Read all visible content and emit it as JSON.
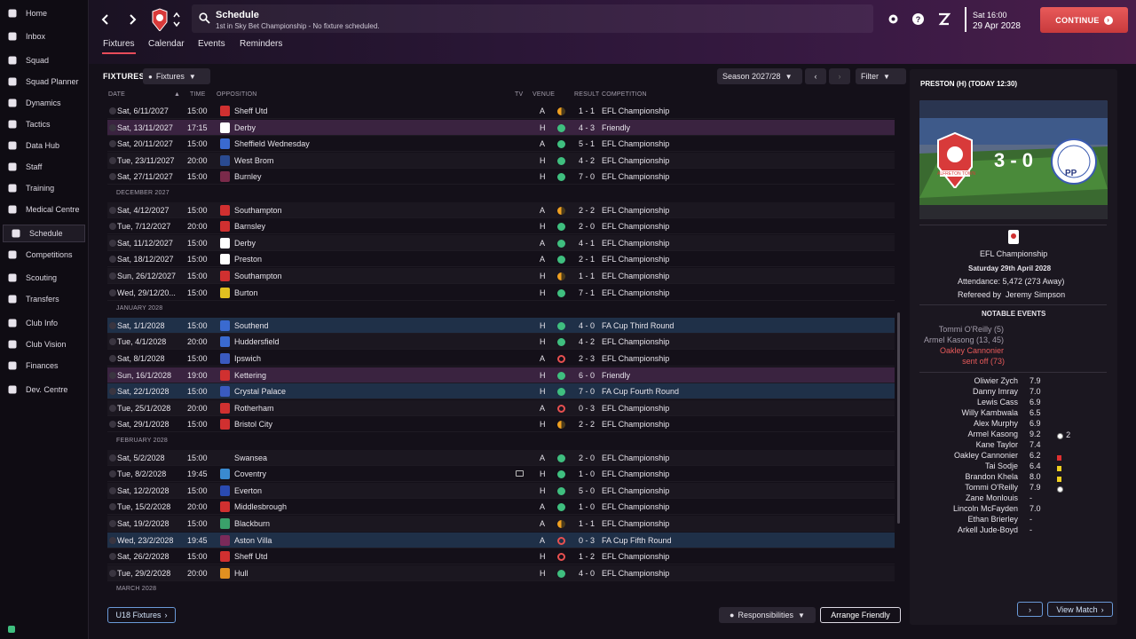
{
  "sidebar": {
    "items": [
      {
        "label": "Home",
        "icon": "home-icon"
      },
      {
        "label": "Inbox",
        "icon": "inbox-icon"
      },
      {
        "label": "Squad",
        "icon": "shirt-icon"
      },
      {
        "label": "Squad Planner",
        "icon": "planner-icon"
      },
      {
        "label": "Dynamics",
        "icon": "handshake-icon"
      },
      {
        "label": "Tactics",
        "icon": "tactics-icon"
      },
      {
        "label": "Data Hub",
        "icon": "chart-icon"
      },
      {
        "label": "Staff",
        "icon": "staff-icon"
      },
      {
        "label": "Training",
        "icon": "training-icon"
      },
      {
        "label": "Medical Centre",
        "icon": "medical-icon"
      },
      {
        "label": "Schedule",
        "icon": "calendar-icon"
      },
      {
        "label": "Competitions",
        "icon": "trophy-icon"
      },
      {
        "label": "Scouting",
        "icon": "scouting-icon"
      },
      {
        "label": "Transfers",
        "icon": "transfers-icon"
      },
      {
        "label": "Club Info",
        "icon": "shield-icon"
      },
      {
        "label": "Club Vision",
        "icon": "vision-icon"
      },
      {
        "label": "Finances",
        "icon": "finances-icon"
      },
      {
        "label": "Dev. Centre",
        "icon": "dev-centre-icon"
      }
    ],
    "active": "Schedule"
  },
  "header": {
    "title": "Schedule",
    "subtitle": "1st in Sky Bet Championship - No fixture scheduled.",
    "time": "Sat 16:00",
    "date": "29 Apr 2028",
    "continue_label": "CONTINUE",
    "tabs": [
      "Fixtures",
      "Calendar",
      "Events",
      "Reminders"
    ],
    "active_tab": "Fixtures"
  },
  "fixtures": {
    "label": "FIXTURES",
    "view_pill": "Fixtures",
    "season": "Season 2027/28",
    "filter": "Filter",
    "columns": {
      "date": "DATE",
      "time": "TIME",
      "opposition": "OPPOSITION",
      "tv": "TV",
      "venue": "VENUE",
      "result": "RESULT",
      "competition": "COMPETITION"
    },
    "rows": [
      {
        "type": "match",
        "date": "Sat, 6/11/2027",
        "time": "15:00",
        "opp": "Sheff Utd",
        "crest": "#d03030",
        "venue": "A",
        "outcome": "draw",
        "score": "1 - 1",
        "comp": "EFL Championship",
        "style": ""
      },
      {
        "type": "match",
        "date": "Sat, 13/11/2027",
        "time": "17:15",
        "opp": "Derby",
        "crest": "#ffffff",
        "venue": "H",
        "outcome": "win",
        "score": "4 - 3",
        "comp": "Friendly",
        "style": "friendly"
      },
      {
        "type": "match",
        "date": "Sat, 20/11/2027",
        "time": "15:00",
        "opp": "Sheffield Wednesday",
        "crest": "#3a6ad0",
        "venue": "A",
        "outcome": "win",
        "score": "5 - 1",
        "comp": "EFL Championship",
        "style": ""
      },
      {
        "type": "match",
        "date": "Tue, 23/11/2027",
        "time": "20:00",
        "opp": "West Brom",
        "crest": "#2a4a90",
        "venue": "H",
        "outcome": "win",
        "score": "4 - 2",
        "comp": "EFL Championship",
        "style": "alt"
      },
      {
        "type": "match",
        "date": "Sat, 27/11/2027",
        "time": "15:00",
        "opp": "Burnley",
        "crest": "#7a2a4a",
        "venue": "H",
        "outcome": "win",
        "score": "7 - 0",
        "comp": "EFL Championship",
        "style": ""
      },
      {
        "type": "month",
        "label": "DECEMBER 2027"
      },
      {
        "type": "match",
        "date": "Sat, 4/12/2027",
        "time": "15:00",
        "opp": "Southampton",
        "crest": "#d03030",
        "venue": "A",
        "outcome": "draw",
        "score": "2 - 2",
        "comp": "EFL Championship",
        "style": "alt"
      },
      {
        "type": "match",
        "date": "Tue, 7/12/2027",
        "time": "20:00",
        "opp": "Barnsley",
        "crest": "#d03030",
        "venue": "H",
        "outcome": "win",
        "score": "2 - 0",
        "comp": "EFL Championship",
        "style": ""
      },
      {
        "type": "match",
        "date": "Sat, 11/12/2027",
        "time": "15:00",
        "opp": "Derby",
        "crest": "#ffffff",
        "venue": "A",
        "outcome": "win",
        "score": "4 - 1",
        "comp": "EFL Championship",
        "style": "alt"
      },
      {
        "type": "match",
        "date": "Sat, 18/12/2027",
        "time": "15:00",
        "opp": "Preston",
        "crest": "#ffffff",
        "venue": "A",
        "outcome": "win",
        "score": "2 - 1",
        "comp": "EFL Championship",
        "style": ""
      },
      {
        "type": "match",
        "date": "Sun, 26/12/2027",
        "time": "15:00",
        "opp": "Southampton",
        "crest": "#d03030",
        "venue": "H",
        "outcome": "draw",
        "score": "1 - 1",
        "comp": "EFL Championship",
        "style": "alt"
      },
      {
        "type": "match",
        "date": "Wed, 29/12/20...",
        "time": "15:00",
        "opp": "Burton",
        "crest": "#e0c020",
        "venue": "H",
        "outcome": "win",
        "score": "7 - 1",
        "comp": "EFL Championship",
        "style": ""
      },
      {
        "type": "month",
        "label": "JANUARY 2028"
      },
      {
        "type": "match",
        "date": "Sat, 1/1/2028",
        "time": "15:00",
        "opp": "Southend",
        "crest": "#3a6ad0",
        "venue": "H",
        "outcome": "win",
        "score": "4 - 0",
        "comp": "FA Cup Third Round",
        "style": "cup"
      },
      {
        "type": "match",
        "date": "Tue, 4/1/2028",
        "time": "20:00",
        "opp": "Huddersfield",
        "crest": "#3a6ad0",
        "venue": "H",
        "outcome": "win",
        "score": "4 - 2",
        "comp": "EFL Championship",
        "style": "alt"
      },
      {
        "type": "match",
        "date": "Sat, 8/1/2028",
        "time": "15:00",
        "opp": "Ipswich",
        "crest": "#3a5ac0",
        "venue": "A",
        "outcome": "loss",
        "score": "2 - 3",
        "comp": "EFL Championship",
        "style": ""
      },
      {
        "type": "match",
        "date": "Sun, 16/1/2028",
        "time": "19:00",
        "opp": "Kettering",
        "crest": "#d03030",
        "venue": "H",
        "outcome": "win",
        "score": "6 - 0",
        "comp": "Friendly",
        "style": "friendly"
      },
      {
        "type": "match",
        "date": "Sat, 22/1/2028",
        "time": "15:00",
        "opp": "Crystal Palace",
        "crest": "#3a5ac0",
        "venue": "H",
        "outcome": "win",
        "score": "7 - 0",
        "comp": "FA Cup Fourth Round",
        "style": "cup"
      },
      {
        "type": "match",
        "date": "Tue, 25/1/2028",
        "time": "20:00",
        "opp": "Rotherham",
        "crest": "#d03030",
        "venue": "A",
        "outcome": "loss",
        "score": "0 - 3",
        "comp": "EFL Championship",
        "style": "alt"
      },
      {
        "type": "match",
        "date": "Sat, 29/1/2028",
        "time": "15:00",
        "opp": "Bristol City",
        "crest": "#d03030",
        "venue": "H",
        "outcome": "draw",
        "score": "2 - 2",
        "comp": "EFL Championship",
        "style": ""
      },
      {
        "type": "month",
        "label": "FEBRUARY 2028"
      },
      {
        "type": "match",
        "date": "Sat, 5/2/2028",
        "time": "15:00",
        "opp": "Swansea",
        "crest": "",
        "venue": "A",
        "outcome": "win",
        "score": "2 - 0",
        "comp": "EFL Championship",
        "style": "alt"
      },
      {
        "type": "match",
        "date": "Tue, 8/2/2028",
        "time": "19:45",
        "opp": "Coventry",
        "crest": "#3a8ad0",
        "venue": "H",
        "outcome": "win",
        "score": "1 - 0",
        "comp": "EFL Championship",
        "style": "",
        "tv": true
      },
      {
        "type": "match",
        "date": "Sat, 12/2/2028",
        "time": "15:00",
        "opp": "Everton",
        "crest": "#2a4ab0",
        "venue": "H",
        "outcome": "win",
        "score": "5 - 0",
        "comp": "EFL Championship",
        "style": "alt"
      },
      {
        "type": "match",
        "date": "Tue, 15/2/2028",
        "time": "20:00",
        "opp": "Middlesbrough",
        "crest": "#d03030",
        "venue": "A",
        "outcome": "win",
        "score": "1 - 0",
        "comp": "EFL Championship",
        "style": ""
      },
      {
        "type": "match",
        "date": "Sat, 19/2/2028",
        "time": "15:00",
        "opp": "Blackburn",
        "crest": "#3aa06a",
        "venue": "A",
        "outcome": "draw",
        "score": "1 - 1",
        "comp": "EFL Championship",
        "style": "alt"
      },
      {
        "type": "match",
        "date": "Wed, 23/2/2028",
        "time": "19:45",
        "opp": "Aston Villa",
        "crest": "#7a2a5a",
        "venue": "A",
        "outcome": "loss",
        "score": "0 - 3",
        "comp": "FA Cup Fifth Round",
        "style": "cup"
      },
      {
        "type": "match",
        "date": "Sat, 26/2/2028",
        "time": "15:00",
        "opp": "Sheff Utd",
        "crest": "#d03030",
        "venue": "H",
        "outcome": "loss",
        "score": "1 - 2",
        "comp": "EFL Championship",
        "style": ""
      },
      {
        "type": "match",
        "date": "Tue, 29/2/2028",
        "time": "20:00",
        "opp": "Hull",
        "crest": "#e09020",
        "venue": "H",
        "outcome": "win",
        "score": "4 - 0",
        "comp": "EFL Championship",
        "style": "alt"
      },
      {
        "type": "month",
        "label": "MARCH 2028"
      }
    ],
    "u18_button": "U18 Fixtures",
    "responsibilities_button": "Responsibilities",
    "arrange_friendly_button": "Arrange Friendly"
  },
  "match_panel": {
    "title": "PRESTON (H) (TODAY 12:30)",
    "score": "3 - 0",
    "home_crest_text": "ALFRETON TOWN",
    "away_crest_text": "PP",
    "competition": "EFL Championship",
    "date": "Saturday 29th April 2028",
    "attendance": "Attendance: 5,472 (273 Away)",
    "referee_label": "Refereed by",
    "referee": "Jeremy Simpson",
    "notable_title": "NOTABLE EVENTS",
    "events": [
      {
        "text": "Tommi O'Reilly (5)",
        "color": "#a39dab"
      },
      {
        "text": "Armel Kasong (13, 45)",
        "color": "#a39dab"
      },
      {
        "text": "Oakley Cannonier",
        "color": "#e85a5a"
      },
      {
        "text": "sent off (73)",
        "color": "#e85a5a"
      }
    ],
    "players": [
      {
        "name": "Oliwier Zych",
        "rating": "7.9",
        "extra": ""
      },
      {
        "name": "Danny Imray",
        "rating": "7.0",
        "extra": ""
      },
      {
        "name": "Lewis Cass",
        "rating": "6.9",
        "extra": ""
      },
      {
        "name": "Willy Kambwala",
        "rating": "6.5",
        "extra": ""
      },
      {
        "name": "Alex Murphy",
        "rating": "6.9",
        "extra": ""
      },
      {
        "name": "Armel Kasong",
        "rating": "9.2",
        "extra": "ball2"
      },
      {
        "name": "Kane Taylor",
        "rating": "7.4",
        "extra": ""
      },
      {
        "name": "Oakley Cannonier",
        "rating": "6.2",
        "extra": "red"
      },
      {
        "name": "Tai Sodje",
        "rating": "6.4",
        "extra": "yellow"
      },
      {
        "name": "Brandon Khela",
        "rating": "8.0",
        "extra": "yellow"
      },
      {
        "name": "Tommi O'Reilly",
        "rating": "7.9",
        "extra": "ball"
      },
      {
        "name": "Zane Monlouis",
        "rating": "-",
        "extra": ""
      },
      {
        "name": "Lincoln McFayden",
        "rating": "7.0",
        "extra": ""
      },
      {
        "name": "Ethan Brierley",
        "rating": "-",
        "extra": ""
      },
      {
        "name": "Arkell Jude-Boyd",
        "rating": "-",
        "extra": ""
      }
    ],
    "goals_count": "2",
    "view_match": "View Match"
  }
}
